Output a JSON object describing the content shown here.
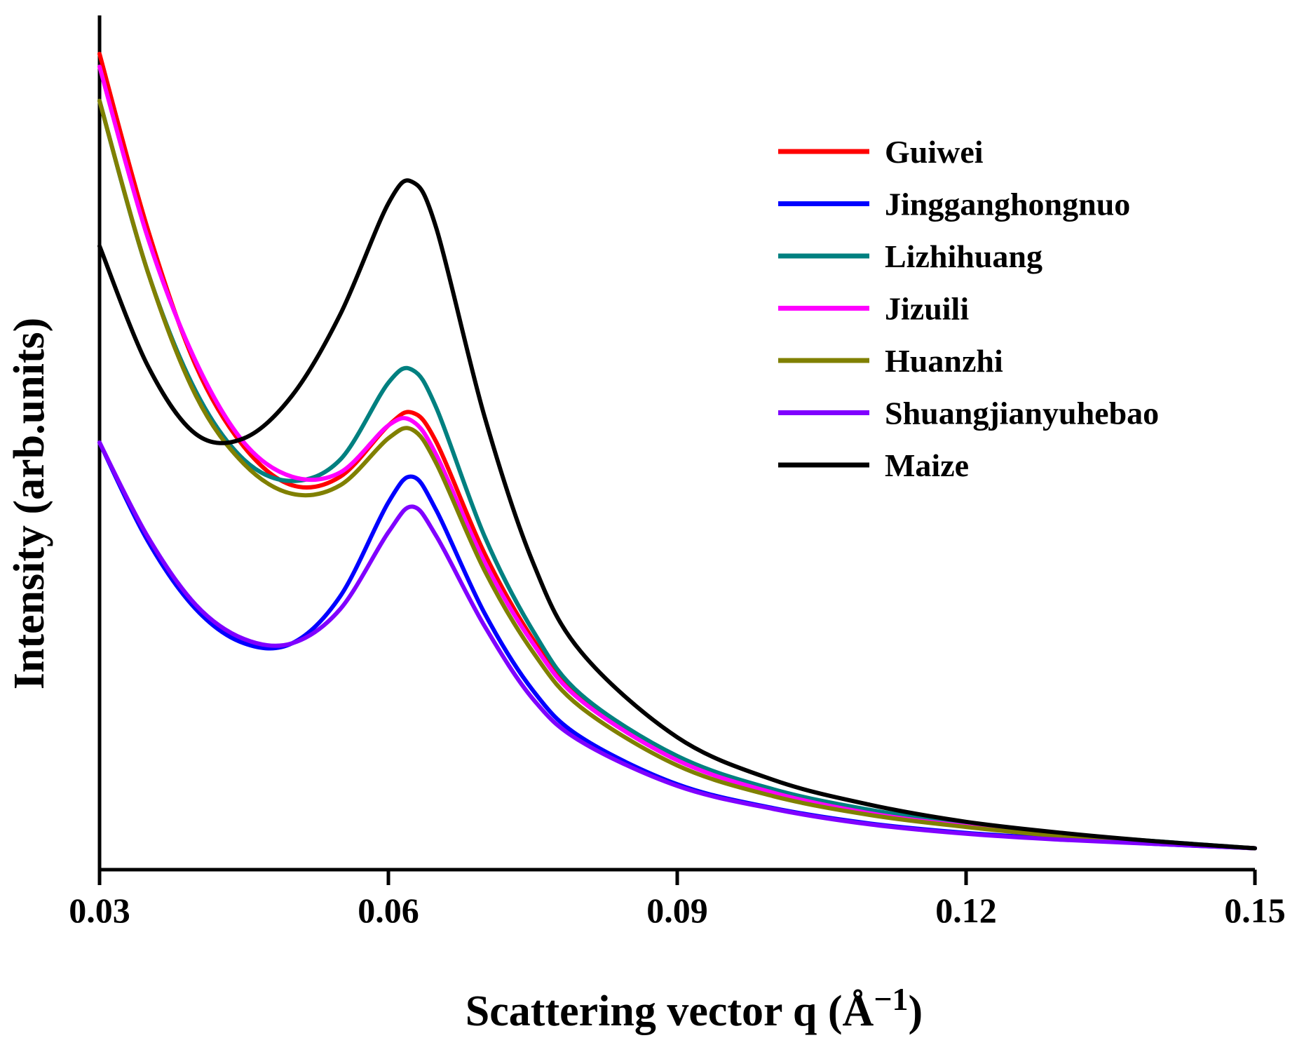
{
  "chart_data": {
    "type": "line",
    "title": "",
    "xlabel": "Scattering vector q (Å",
    "xlabel_sup": "−1",
    "xlabel_close": ")",
    "ylabel": "Intensity (arb.units)",
    "xlim": [
      0.03,
      0.15
    ],
    "ylim": [
      0,
      10
    ],
    "x_ticks": [
      0.03,
      0.06,
      0.09,
      0.12,
      0.15
    ],
    "x_tick_labels": [
      "0.03",
      "0.06",
      "0.09",
      "0.12",
      "0.15"
    ],
    "y_ticks_shown": false,
    "grid": false,
    "legend_position": "top-right",
    "x": [
      0.03,
      0.035,
      0.04,
      0.045,
      0.05,
      0.055,
      0.06,
      0.0625,
      0.065,
      0.07,
      0.075,
      0.08,
      0.09,
      0.1,
      0.11,
      0.12,
      0.13,
      0.14,
      0.15
    ],
    "series": [
      {
        "name": "Guiwei",
        "color": "#ff0000",
        "values": [
          9.55,
          7.5,
          5.9,
          4.95,
          4.5,
          4.6,
          5.2,
          5.35,
          5.0,
          3.7,
          2.7,
          2.0,
          1.3,
          0.92,
          0.68,
          0.52,
          0.4,
          0.32,
          0.25
        ]
      },
      {
        "name": "Jingganghongnuo",
        "color": "#0000ff",
        "values": [
          5.0,
          3.85,
          3.05,
          2.65,
          2.65,
          3.2,
          4.3,
          4.6,
          4.2,
          3.0,
          2.1,
          1.55,
          1.0,
          0.72,
          0.54,
          0.43,
          0.36,
          0.3,
          0.25
        ]
      },
      {
        "name": "Lizhihuang",
        "color": "#008080",
        "values": [
          9.0,
          7.0,
          5.6,
          4.8,
          4.55,
          4.8,
          5.7,
          5.85,
          5.4,
          3.9,
          2.8,
          2.05,
          1.33,
          0.94,
          0.7,
          0.54,
          0.42,
          0.33,
          0.25
        ]
      },
      {
        "name": "Jizuili",
        "color": "#ff00ff",
        "values": [
          9.4,
          7.4,
          5.95,
          5.0,
          4.6,
          4.65,
          5.2,
          5.25,
          4.85,
          3.6,
          2.65,
          1.98,
          1.28,
          0.9,
          0.66,
          0.51,
          0.4,
          0.32,
          0.25
        ]
      },
      {
        "name": "Huanzhi",
        "color": "#808000",
        "values": [
          9.0,
          7.0,
          5.55,
          4.75,
          4.4,
          4.5,
          5.05,
          5.15,
          4.75,
          3.5,
          2.55,
          1.9,
          1.22,
          0.86,
          0.64,
          0.5,
          0.39,
          0.31,
          0.25
        ]
      },
      {
        "name": "Shuangjianyuhebao",
        "color": "#8000ff",
        "values": [
          5.0,
          3.9,
          3.1,
          2.7,
          2.65,
          3.05,
          3.95,
          4.25,
          3.9,
          2.85,
          2.0,
          1.5,
          0.98,
          0.71,
          0.53,
          0.42,
          0.35,
          0.3,
          0.25
        ]
      },
      {
        "name": "Maize",
        "color": "#000000",
        "values": [
          7.3,
          5.9,
          5.1,
          5.05,
          5.55,
          6.5,
          7.8,
          8.05,
          7.5,
          5.3,
          3.6,
          2.55,
          1.55,
          1.05,
          0.76,
          0.56,
          0.43,
          0.33,
          0.25
        ]
      }
    ]
  }
}
